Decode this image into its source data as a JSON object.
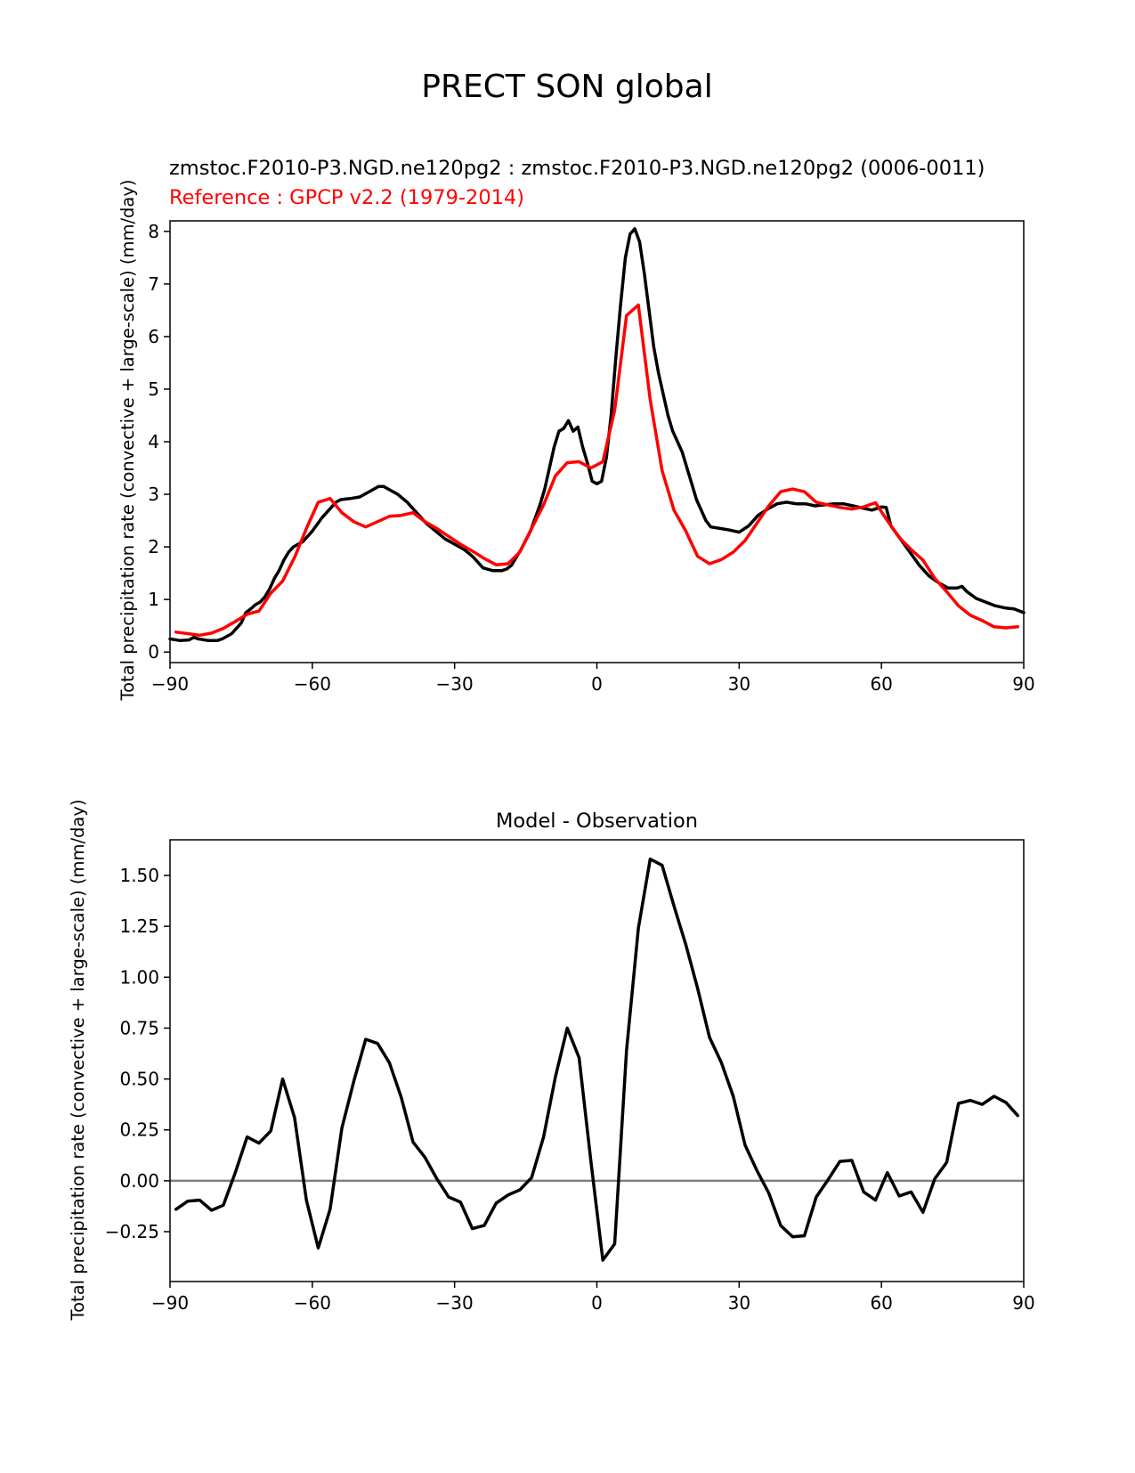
{
  "figure": {
    "title": "PRECT SON global"
  },
  "chart_data": [
    {
      "type": "line",
      "subtitle_test": "zmstoc.F2010-P3.NGD.ne120pg2 : zmstoc.F2010-P3.NGD.ne120pg2 (0006-0011)",
      "subtitle_ref": "Reference : GPCP v2.2 (1979-2014)",
      "xlabel": "",
      "ylabel": "Total precipitation rate (convective + large-scale) (mm/day)",
      "xlim": [
        -90,
        90
      ],
      "ylim": [
        -0.2,
        8.2
      ],
      "xticks": [
        -90,
        -60,
        -30,
        0,
        30,
        60,
        90
      ],
      "xtick_labels": [
        "−90",
        "−60",
        "−30",
        "0",
        "30",
        "60",
        "90"
      ],
      "yticks": [
        0,
        1,
        2,
        3,
        4,
        5,
        6,
        7,
        8
      ],
      "ytick_labels": [
        "0",
        "1",
        "2",
        "3",
        "4",
        "5",
        "6",
        "7",
        "8"
      ],
      "grid": false,
      "series": [
        {
          "color": "#000000",
          "x": [
            -90,
            -88,
            -86,
            -85,
            -84,
            -82,
            -80,
            -79,
            -78,
            -77,
            -76,
            -75,
            -74,
            -73,
            -72,
            -71,
            -70,
            -69,
            -68,
            -67,
            -66,
            -65,
            -64,
            -62,
            -60,
            -58,
            -56,
            -55,
            -54,
            -52,
            -50,
            -48,
            -47,
            -46,
            -45,
            -44,
            -42,
            -40,
            -38,
            -36,
            -34,
            -32,
            -30,
            -28,
            -27,
            -26,
            -25,
            -24,
            -22,
            -20,
            -19,
            -18,
            -17,
            -16,
            -14,
            -12,
            -11,
            -10,
            -9,
            -8,
            -7,
            -6,
            -5,
            -4,
            -3,
            -2,
            -1,
            0,
            1,
            2,
            3,
            4,
            5,
            6,
            7,
            8,
            9,
            10,
            11,
            12,
            13,
            14,
            15,
            16,
            17,
            18,
            19,
            20,
            21,
            22,
            23,
            24,
            26,
            28,
            30,
            32,
            34,
            36,
            38,
            40,
            42,
            44,
            46,
            48,
            50,
            52,
            54,
            56,
            58,
            60,
            61,
            62,
            64,
            66,
            68,
            70,
            72,
            74,
            76,
            77,
            78,
            80,
            82,
            84,
            86,
            88,
            90
          ],
          "values": [
            0.25,
            0.22,
            0.23,
            0.28,
            0.25,
            0.22,
            0.22,
            0.25,
            0.3,
            0.35,
            0.45,
            0.55,
            0.75,
            0.82,
            0.9,
            0.95,
            1.05,
            1.2,
            1.4,
            1.55,
            1.75,
            1.9,
            2.0,
            2.1,
            2.3,
            2.55,
            2.75,
            2.85,
            2.9,
            2.92,
            2.95,
            3.05,
            3.1,
            3.15,
            3.15,
            3.1,
            3.0,
            2.85,
            2.65,
            2.45,
            2.3,
            2.15,
            2.05,
            1.95,
            1.88,
            1.8,
            1.7,
            1.6,
            1.55,
            1.55,
            1.58,
            1.65,
            1.8,
            1.95,
            2.3,
            2.8,
            3.1,
            3.5,
            3.9,
            4.2,
            4.25,
            4.4,
            4.2,
            4.28,
            3.9,
            3.6,
            3.25,
            3.2,
            3.25,
            3.7,
            4.5,
            5.6,
            6.6,
            7.5,
            7.95,
            8.05,
            7.8,
            7.2,
            6.5,
            5.8,
            5.3,
            4.9,
            4.5,
            4.2,
            4.0,
            3.8,
            3.5,
            3.2,
            2.9,
            2.7,
            2.5,
            2.38,
            2.35,
            2.32,
            2.28,
            2.4,
            2.6,
            2.72,
            2.82,
            2.85,
            2.82,
            2.82,
            2.78,
            2.8,
            2.82,
            2.82,
            2.78,
            2.74,
            2.7,
            2.76,
            2.75,
            2.4,
            2.15,
            1.9,
            1.65,
            1.45,
            1.32,
            1.22,
            1.22,
            1.25,
            1.15,
            1.02,
            0.95,
            0.88,
            0.84,
            0.82,
            0.75
          ]
        },
        {
          "color": "#ff0000",
          "x": [
            -88.75,
            -86.25,
            -83.75,
            -81.25,
            -78.75,
            -76.25,
            -73.75,
            -71.25,
            -68.75,
            -66.25,
            -63.75,
            -61.25,
            -58.75,
            -56.25,
            -53.75,
            -51.25,
            -48.75,
            -46.25,
            -43.75,
            -41.25,
            -38.75,
            -36.25,
            -33.75,
            -31.25,
            -28.75,
            -26.25,
            -23.75,
            -21.25,
            -18.75,
            -16.25,
            -13.75,
            -11.25,
            -8.75,
            -6.25,
            -3.75,
            -1.25,
            1.25,
            3.75,
            6.25,
            8.75,
            11.25,
            13.75,
            16.25,
            18.75,
            21.25,
            23.75,
            26.25,
            28.75,
            31.25,
            33.75,
            36.25,
            38.75,
            41.25,
            43.75,
            46.25,
            48.75,
            51.25,
            53.75,
            56.25,
            58.75,
            61.25,
            63.75,
            66.25,
            68.75,
            71.25,
            73.75,
            76.25,
            78.75,
            81.25,
            83.75,
            86.25,
            88.75
          ],
          "values": [
            0.38,
            0.35,
            0.32,
            0.36,
            0.45,
            0.58,
            0.72,
            0.78,
            1.12,
            1.35,
            1.8,
            2.35,
            2.85,
            2.92,
            2.65,
            2.48,
            2.38,
            2.48,
            2.58,
            2.6,
            2.65,
            2.48,
            2.35,
            2.2,
            2.05,
            1.92,
            1.78,
            1.66,
            1.68,
            1.9,
            2.35,
            2.8,
            3.35,
            3.6,
            3.62,
            3.5,
            3.62,
            4.6,
            6.4,
            6.6,
            4.8,
            3.45,
            2.7,
            2.3,
            1.82,
            1.68,
            1.76,
            1.9,
            2.12,
            2.45,
            2.78,
            3.05,
            3.1,
            3.05,
            2.85,
            2.8,
            2.75,
            2.72,
            2.76,
            2.84,
            2.5,
            2.18,
            1.95,
            1.75,
            1.4,
            1.15,
            0.88,
            0.7,
            0.6,
            0.48,
            0.46,
            0.48
          ]
        }
      ]
    },
    {
      "type": "line",
      "title": "Model - Observation",
      "xlabel": "",
      "ylabel": "Total precipitation rate (convective + large-scale) (mm/day)",
      "xlim": [
        -90,
        90
      ],
      "ylim": [
        -0.495,
        1.675
      ],
      "xticks": [
        -90,
        -60,
        -30,
        0,
        30,
        60,
        90
      ],
      "xtick_labels": [
        "−90",
        "−60",
        "−30",
        "0",
        "30",
        "60",
        "90"
      ],
      "yticks": [
        -0.25,
        0.0,
        0.25,
        0.5,
        0.75,
        1.0,
        1.25,
        1.5
      ],
      "ytick_labels": [
        "−0.25",
        "0.00",
        "0.25",
        "0.50",
        "0.75",
        "1.00",
        "1.25",
        "1.50"
      ],
      "grid": false,
      "zero_line_color": "#808080",
      "series": [
        {
          "color": "#000000",
          "x": [
            -88.75,
            -86.25,
            -83.75,
            -81.25,
            -78.75,
            -76.25,
            -73.75,
            -71.25,
            -68.75,
            -66.25,
            -63.75,
            -61.25,
            -58.75,
            -56.25,
            -53.75,
            -51.25,
            -48.75,
            -46.25,
            -43.75,
            -41.25,
            -38.75,
            -36.25,
            -33.75,
            -31.25,
            -28.75,
            -26.25,
            -23.75,
            -21.25,
            -18.75,
            -16.25,
            -13.75,
            -11.25,
            -8.75,
            -6.25,
            -3.75,
            -1.25,
            1.25,
            3.75,
            6.25,
            8.75,
            11.25,
            13.75,
            16.25,
            18.75,
            21.25,
            23.75,
            26.25,
            28.75,
            31.25,
            33.75,
            36.25,
            38.75,
            41.25,
            43.75,
            46.25,
            48.75,
            51.25,
            53.75,
            56.25,
            58.75,
            61.25,
            63.75,
            66.25,
            68.75,
            71.25,
            73.75,
            76.25,
            78.75,
            81.25,
            83.75,
            86.25,
            88.75
          ],
          "values": [
            -0.14,
            -0.1,
            -0.095,
            -0.145,
            -0.12,
            0.04,
            0.215,
            0.185,
            0.245,
            0.5,
            0.31,
            -0.095,
            -0.33,
            -0.14,
            0.26,
            0.49,
            0.695,
            0.675,
            0.58,
            0.41,
            0.19,
            0.115,
            0.01,
            -0.08,
            -0.105,
            -0.235,
            -0.22,
            -0.11,
            -0.07,
            -0.045,
            0.015,
            0.215,
            0.51,
            0.75,
            0.605,
            0.095,
            -0.39,
            -0.31,
            0.64,
            1.24,
            1.58,
            1.55,
            1.35,
            1.16,
            0.945,
            0.705,
            0.58,
            0.415,
            0.175,
            0.05,
            -0.06,
            -0.22,
            -0.275,
            -0.27,
            -0.08,
            0.005,
            0.095,
            0.1,
            -0.055,
            -0.095,
            0.04,
            -0.075,
            -0.055,
            -0.155,
            0.01,
            0.09,
            0.38,
            0.395,
            0.375,
            0.415,
            0.385,
            0.32
          ]
        }
      ]
    }
  ]
}
